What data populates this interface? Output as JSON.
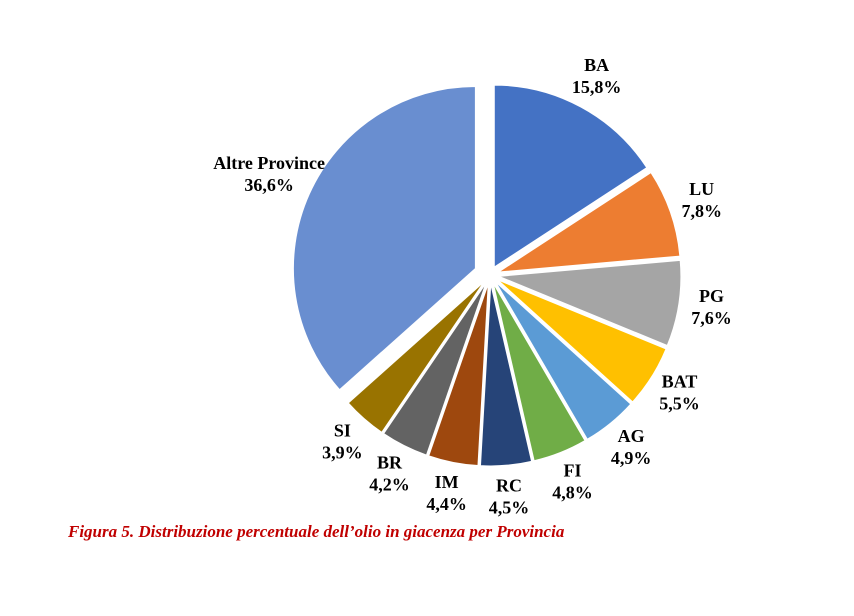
{
  "chart_data": {
    "type": "pie",
    "title": "Figura 5. Distribuzione percentuale dell’olio in giacenza per Provincia",
    "categories": [
      "BA",
      "LU",
      "PG",
      "BAT",
      "AG",
      "FI",
      "RC",
      "IM",
      "BR",
      "SI",
      "Altre Province"
    ],
    "values": [
      15.8,
      7.8,
      7.6,
      5.5,
      4.9,
      4.8,
      4.5,
      4.4,
      4.2,
      3.9,
      36.6
    ],
    "value_labels": [
      "15,8%",
      "7,8%",
      "7,6%",
      "5,5%",
      "4,9%",
      "4,8%",
      "4,5%",
      "4,4%",
      "4,2%",
      "3,9%",
      "36,6%"
    ],
    "colors": [
      "#4472c4",
      "#ed7d31",
      "#a5a5a5",
      "#ffc000",
      "#5b9bd5",
      "#70ad47",
      "#264478",
      "#9e480e",
      "#636363",
      "#997300",
      "#698ed0"
    ]
  }
}
